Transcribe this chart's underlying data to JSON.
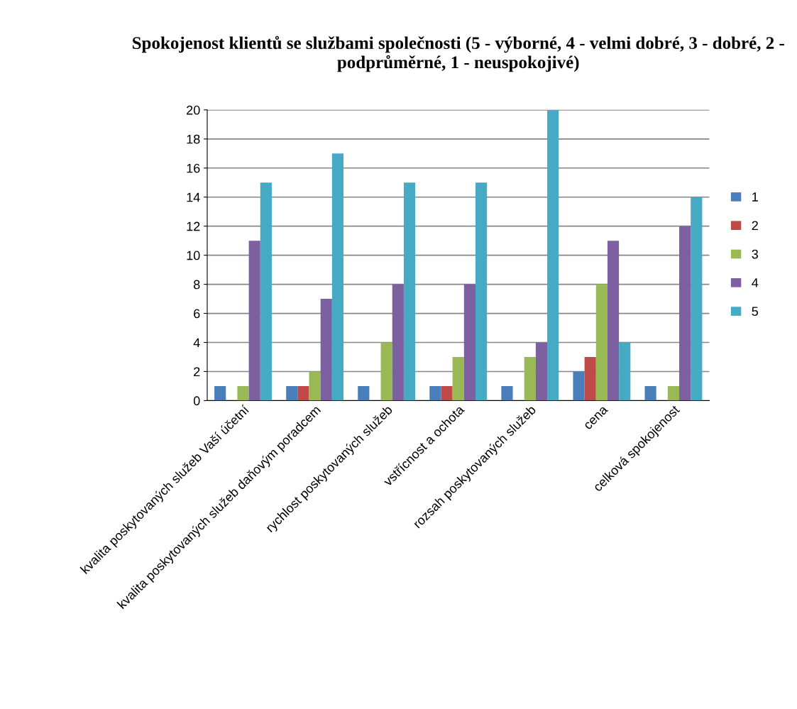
{
  "chart_data": {
    "type": "bar",
    "title": "Spokojenost klientů se službami společnosti (5 - výborné, 4 - velmi dobré, 3 - dobré, 2 - podprůměrné, 1 - neuspokojivé)",
    "categories": [
      "kvalita poskytovaných služeb Vaší účetní",
      "kvalita poskytovaných služeb daňovým poradcem",
      "rychlost poskytovaných služeb",
      "vstřícnost a ochota",
      "rozsah poskytovaných služeb",
      "cena",
      "celková spokojenost"
    ],
    "series": [
      {
        "name": "1",
        "color": "#4a7ebb",
        "values": [
          1,
          1,
          1,
          1,
          1,
          2,
          1
        ]
      },
      {
        "name": "2",
        "color": "#be4b48",
        "values": [
          0,
          1,
          0,
          1,
          0,
          3,
          0
        ]
      },
      {
        "name": "3",
        "color": "#98b954",
        "values": [
          1,
          2,
          4,
          3,
          3,
          8,
          1
        ]
      },
      {
        "name": "4",
        "color": "#7d60a0",
        "values": [
          11,
          7,
          8,
          8,
          4,
          11,
          12
        ]
      },
      {
        "name": "5",
        "color": "#46aac5",
        "values": [
          15,
          17,
          15,
          15,
          20,
          4,
          14
        ]
      }
    ],
    "ylim": [
      0,
      20
    ],
    "yticks": [
      0,
      2,
      4,
      6,
      8,
      10,
      12,
      14,
      16,
      18,
      20
    ],
    "grid": "y",
    "legend": "right"
  }
}
